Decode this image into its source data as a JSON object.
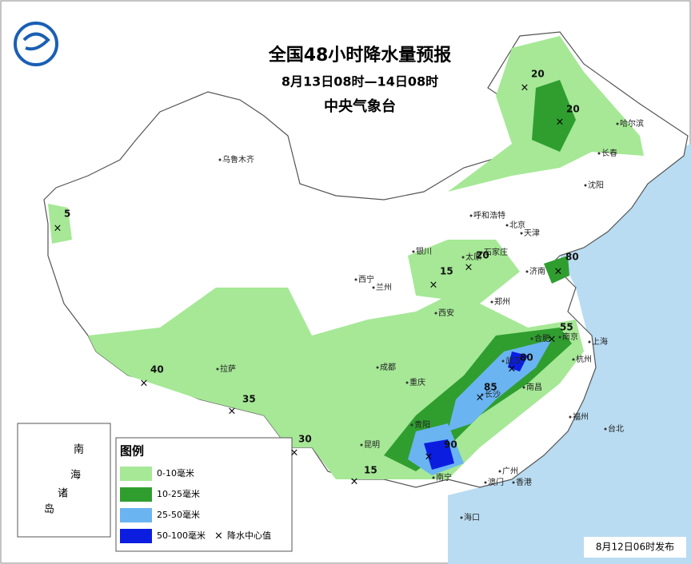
{
  "header": {
    "title": "全国48小时降水量预报",
    "subtitle": "8月13日08时—14日08时",
    "agency": "中央气象台"
  },
  "cities": [
    "乌鲁木齐",
    "哈尔滨",
    "长春",
    "沈阳",
    "呼和浩特",
    "北京",
    "天津",
    "石家庄",
    "太原",
    "银川",
    "西宁",
    "兰州",
    "济南",
    "郑州",
    "西安",
    "合肥",
    "南京",
    "上海",
    "杭州",
    "武汉",
    "长沙",
    "南昌",
    "成都",
    "重庆",
    "贵阳",
    "拉萨",
    "昆明",
    "南宁",
    "广州",
    "澳门",
    "香港",
    "福州",
    "台北",
    "海口"
  ],
  "centers": [
    20,
    20,
    5,
    15,
    20,
    80,
    55,
    80,
    85,
    40,
    35,
    30,
    90,
    15
  ],
  "inset": [
    "南",
    "海",
    "诸",
    "岛"
  ],
  "legend": {
    "title": "图例",
    "items": [
      {
        "label": "0-10毫米",
        "color": "#a6e896"
      },
      {
        "label": "10-25毫米",
        "color": "#2f9e2f"
      },
      {
        "label": "25-50毫米",
        "color": "#6ab4f2"
      },
      {
        "label": "50-100毫米",
        "color": "#0b1ee0"
      }
    ],
    "marker": "降水中心值"
  },
  "footer": "8月12日06时发布"
}
